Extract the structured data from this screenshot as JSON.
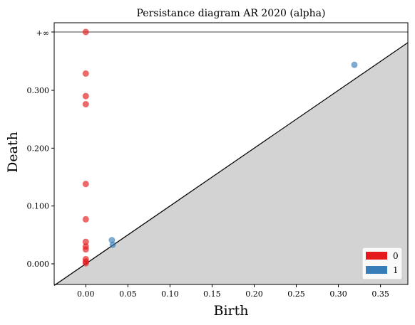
{
  "chart_data": {
    "type": "scatter",
    "title": "Persistance diagram AR 2020 (alpha)",
    "xlabel": "Birth",
    "ylabel": "Death",
    "xlim": [
      -0.0375,
      0.3825
    ],
    "ylim": [
      -0.0355,
      0.365
    ],
    "infinity_label": "+∞",
    "infinity_value": 0.365,
    "x_ticks": [
      {
        "value": 0.0,
        "label": "0.00"
      },
      {
        "value": 0.05,
        "label": "0.05"
      },
      {
        "value": 0.1,
        "label": "0.10"
      },
      {
        "value": 0.15,
        "label": "0.15"
      },
      {
        "value": 0.2,
        "label": "0.20"
      },
      {
        "value": 0.25,
        "label": "0.25"
      },
      {
        "value": 0.3,
        "label": "0.30"
      },
      {
        "value": 0.35,
        "label": "0.35"
      }
    ],
    "y_ticks": [
      {
        "value": 0.0,
        "label": "0.000"
      },
      {
        "value": 0.1,
        "label": "0.100"
      },
      {
        "value": 0.2,
        "label": "0.200"
      },
      {
        "value": 0.3,
        "label": "0.300"
      }
    ],
    "legend_position": "bottom-right",
    "series": [
      {
        "name": "0",
        "color": "#e41a1c",
        "points": [
          {
            "x": 0.0,
            "y": 0.365
          },
          {
            "x": 0.0,
            "y": 0.329
          },
          {
            "x": 0.0,
            "y": 0.29
          },
          {
            "x": 0.0,
            "y": 0.276
          },
          {
            "x": 0.0,
            "y": 0.138
          },
          {
            "x": 0.0,
            "y": 0.077
          },
          {
            "x": 0.0,
            "y": 0.038
          },
          {
            "x": 0.0,
            "y": 0.03
          },
          {
            "x": 0.0,
            "y": 0.025
          },
          {
            "x": 0.0,
            "y": 0.008
          },
          {
            "x": 0.0,
            "y": 0.004
          },
          {
            "x": 0.0,
            "y": 0.001
          }
        ]
      },
      {
        "name": "1",
        "color": "#377eb8",
        "points": [
          {
            "x": 0.031,
            "y": 0.041
          },
          {
            "x": 0.032,
            "y": 0.033
          },
          {
            "x": 0.319,
            "y": 0.344
          }
        ]
      }
    ]
  }
}
